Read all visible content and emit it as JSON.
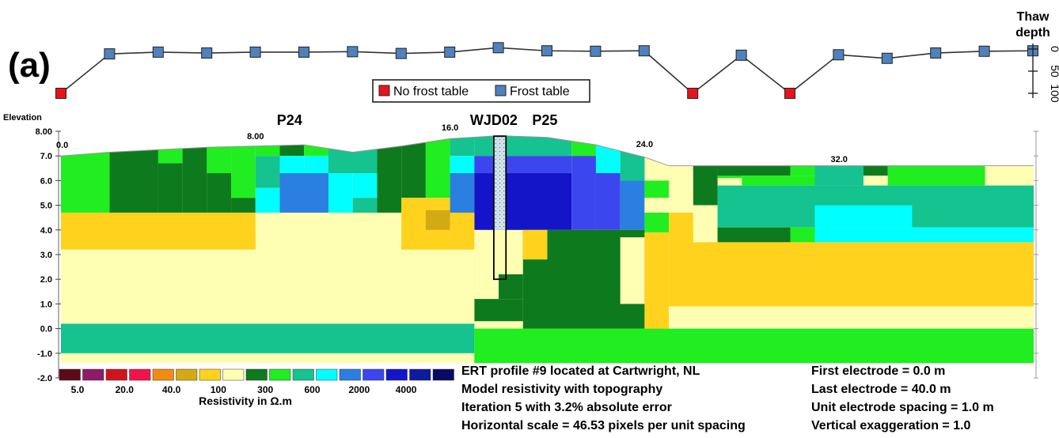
{
  "panel_label": "(a)",
  "thaw": {
    "title_line1": "Thaw",
    "title_line2": "depth",
    "tick_labels": [
      "0",
      "50",
      "100"
    ],
    "markers": [
      {
        "x": 0.0,
        "frost": false,
        "depth": 100
      },
      {
        "x": 2.0,
        "frost": true,
        "depth": 11
      },
      {
        "x": 3.0,
        "frost": true,
        "depth": 7
      },
      {
        "x": 4.0,
        "frost": true,
        "depth": 9
      },
      {
        "x": 5.0,
        "frost": true,
        "depth": 7
      },
      {
        "x": 6.0,
        "frost": true,
        "depth": 7
      },
      {
        "x": 7.0,
        "frost": true,
        "depth": 6
      },
      {
        "x": 8.0,
        "frost": true,
        "depth": 10
      },
      {
        "x": 9.0,
        "frost": true,
        "depth": 7
      },
      {
        "x": 10.0,
        "frost": true,
        "depth": -3
      },
      {
        "x": 11.0,
        "frost": true,
        "depth": 4
      },
      {
        "x": 12.0,
        "frost": true,
        "depth": 5
      },
      {
        "x": 13.0,
        "frost": true,
        "depth": 4
      },
      {
        "x": 14.0,
        "frost": false,
        "depth": 100
      },
      {
        "x": 15.0,
        "frost": true,
        "depth": 14
      },
      {
        "x": 16.0,
        "frost": false,
        "depth": 100
      },
      {
        "x": 17.0,
        "frost": true,
        "depth": 13
      },
      {
        "x": 18.0,
        "frost": true,
        "depth": 21
      },
      {
        "x": 19.0,
        "frost": true,
        "depth": 9
      },
      {
        "x": 20.0,
        "frost": true,
        "depth": 5
      },
      {
        "x": 21.0,
        "frost": true,
        "depth": 4
      }
    ]
  },
  "legend": {
    "no_frost_label": "No frost table",
    "frost_label": "Frost table",
    "no_frost_color": "#e8141c",
    "frost_color": "#4f81bd"
  },
  "chart_data": {
    "type": "heatmap",
    "title": "",
    "ylabel": "Elevation",
    "xlim": [
      0,
      40
    ],
    "ylim": [
      -2,
      8
    ],
    "x_ticks": [
      {
        "value": 0,
        "label": "0.0"
      },
      {
        "value": 8,
        "label": "8.00"
      },
      {
        "value": 16,
        "label": "16.0"
      },
      {
        "value": 24,
        "label": "24.0"
      },
      {
        "value": 32,
        "label": "32.0"
      }
    ],
    "y_ticks": [
      {
        "value": 8,
        "label": "8.00"
      },
      {
        "value": 7,
        "label": "7.0"
      },
      {
        "value": 6,
        "label": "6.0"
      },
      {
        "value": 5,
        "label": "5.0"
      },
      {
        "value": 4,
        "label": "4.0"
      },
      {
        "value": 3,
        "label": "3.0"
      },
      {
        "value": 2,
        "label": "2.0"
      },
      {
        "value": 1,
        "label": "1.0"
      },
      {
        "value": 0,
        "label": "0.0"
      },
      {
        "value": -1,
        "label": "-1.0"
      },
      {
        "value": -2,
        "label": "-2.0"
      }
    ],
    "annotations": [
      {
        "text": "P24",
        "x": 9.4
      },
      {
        "text": "WJD02",
        "x": 17.8
      },
      {
        "text": "P25",
        "x": 19.9
      }
    ],
    "borehole": {
      "x0": 17.8,
      "x1": 18.3,
      "top": 7.8,
      "bottom": 2.0,
      "ice_bottom": 4.0
    },
    "topography": [
      [
        0,
        7.0
      ],
      [
        2,
        7.15
      ],
      [
        4,
        7.25
      ],
      [
        6,
        7.35
      ],
      [
        8,
        7.4
      ],
      [
        10,
        7.45
      ],
      [
        12,
        7.15
      ],
      [
        14,
        7.4
      ],
      [
        16,
        7.7
      ],
      [
        18,
        7.82
      ],
      [
        20,
        7.75
      ],
      [
        22,
        7.45
      ],
      [
        24,
        6.95
      ],
      [
        25,
        6.6
      ],
      [
        28,
        6.6
      ],
      [
        32,
        6.6
      ],
      [
        36,
        6.6
      ],
      [
        40,
        6.6
      ]
    ],
    "colorbar": {
      "colors": [
        "#5c0a1a",
        "#8c1c6a",
        "#d0141c",
        "#f0144a",
        "#f08c14",
        "#d4aa14",
        "#ffd21e",
        "#ffffb4",
        "#0e7a1e",
        "#20ee20",
        "#14c390",
        "#00ffff",
        "#2b7fe0",
        "#3c46ee",
        "#1414c8",
        "#0e1aa0",
        "#0a0a64"
      ],
      "tick_labels": [
        "5.0",
        "20.0",
        "40.0",
        "100",
        "300",
        "600",
        "2000",
        "4000"
      ],
      "label": "Resistivity in Ω.m"
    },
    "cells": [
      {
        "x0": 0,
        "x1": 40,
        "y0": -1.4,
        "y1": 7.9,
        "c": 7
      },
      {
        "x0": 0,
        "x1": 17,
        "y0": -1.0,
        "y1": 0.2,
        "c": 10
      },
      {
        "x0": 17,
        "x1": 40,
        "y0": -1.4,
        "y1": 0.0,
        "c": 9
      },
      {
        "x0": 0,
        "x1": 2,
        "y0": 4.7,
        "y1": 8,
        "c": 9
      },
      {
        "x0": 2,
        "x1": 4,
        "y0": 4.7,
        "y1": 8,
        "c": 8
      },
      {
        "x0": 4,
        "x1": 5,
        "y0": 6.7,
        "y1": 8,
        "c": 9
      },
      {
        "x0": 4,
        "x1": 5,
        "y0": 4.7,
        "y1": 6.7,
        "c": 8
      },
      {
        "x0": 5,
        "x1": 6,
        "y0": 4.7,
        "y1": 8,
        "c": 8
      },
      {
        "x0": 6,
        "x1": 7,
        "y0": 6.3,
        "y1": 8,
        "c": 9
      },
      {
        "x0": 6,
        "x1": 7,
        "y0": 4.7,
        "y1": 6.3,
        "c": 8
      },
      {
        "x0": 7,
        "x1": 8,
        "y0": 5.3,
        "y1": 8,
        "c": 9
      },
      {
        "x0": 7,
        "x1": 8,
        "y0": 4.7,
        "y1": 5.3,
        "c": 8
      },
      {
        "x0": 8,
        "x1": 9,
        "y0": 7.0,
        "y1": 8,
        "c": 9
      },
      {
        "x0": 8,
        "x1": 9,
        "y0": 5.7,
        "y1": 7.0,
        "c": 10
      },
      {
        "x0": 8,
        "x1": 9,
        "y0": 4.7,
        "y1": 5.7,
        "c": 11
      },
      {
        "x0": 9,
        "x1": 10,
        "y0": 7.0,
        "y1": 8,
        "c": 8
      },
      {
        "x0": 9,
        "x1": 10,
        "y0": 6.3,
        "y1": 7.0,
        "c": 11
      },
      {
        "x0": 9,
        "x1": 11,
        "y0": 4.7,
        "y1": 6.3,
        "c": 12
      },
      {
        "x0": 10,
        "x1": 11,
        "y0": 7.0,
        "y1": 8,
        "c": 9
      },
      {
        "x0": 10,
        "x1": 11,
        "y0": 6.3,
        "y1": 7.0,
        "c": 11
      },
      {
        "x0": 11,
        "x1": 13,
        "y0": 6.3,
        "y1": 8,
        "c": 10
      },
      {
        "x0": 11,
        "x1": 12,
        "y0": 4.7,
        "y1": 6.3,
        "c": 11
      },
      {
        "x0": 12,
        "x1": 13,
        "y0": 5.3,
        "y1": 6.3,
        "c": 11
      },
      {
        "x0": 12,
        "x1": 13,
        "y0": 4.7,
        "y1": 5.3,
        "c": 10
      },
      {
        "x0": 13,
        "x1": 14,
        "y0": 4.7,
        "y1": 8,
        "c": 8
      },
      {
        "x0": 14,
        "x1": 15,
        "y0": 5.3,
        "y1": 8,
        "c": 8
      },
      {
        "x0": 15,
        "x1": 16,
        "y0": 5.3,
        "y1": 8,
        "c": 9
      },
      {
        "x0": 16,
        "x1": 17,
        "y0": 7.0,
        "y1": 8,
        "c": 10
      },
      {
        "x0": 16,
        "x1": 17,
        "y0": 6.3,
        "y1": 7.0,
        "c": 11
      },
      {
        "x0": 16,
        "x1": 17,
        "y0": 4.7,
        "y1": 6.3,
        "c": 12
      },
      {
        "x0": 17,
        "x1": 21,
        "y0": 7.0,
        "y1": 8,
        "c": 10
      },
      {
        "x0": 17,
        "x1": 18,
        "y0": 6.3,
        "y1": 7.0,
        "c": 13
      },
      {
        "x0": 17,
        "x1": 18,
        "y0": 4.0,
        "y1": 6.3,
        "c": 14
      },
      {
        "x0": 18,
        "x1": 21,
        "y0": 6.3,
        "y1": 7.0,
        "c": 13
      },
      {
        "x0": 18,
        "x1": 21,
        "y0": 4.0,
        "y1": 6.3,
        "c": 14
      },
      {
        "x0": 21,
        "x1": 22,
        "y0": 7.0,
        "y1": 8,
        "c": 9
      },
      {
        "x0": 21,
        "x1": 22,
        "y0": 4.0,
        "y1": 7.0,
        "c": 13
      },
      {
        "x0": 22,
        "x1": 23,
        "y0": 6.3,
        "y1": 8,
        "c": 11
      },
      {
        "x0": 22,
        "x1": 23,
        "y0": 4.0,
        "y1": 6.3,
        "c": 13
      },
      {
        "x0": 23,
        "x1": 24,
        "y0": 6.0,
        "y1": 8,
        "c": 10
      },
      {
        "x0": 23,
        "x1": 24,
        "y0": 4.0,
        "y1": 6.0,
        "c": 12
      },
      {
        "x0": 24,
        "x1": 25,
        "y0": 5.3,
        "y1": 6.0,
        "c": 9
      },
      {
        "x0": 24,
        "x1": 25,
        "y0": 4.7,
        "y1": 5.3,
        "c": 7
      },
      {
        "x0": 24,
        "x1": 25,
        "y0": 3.9,
        "y1": 4.7,
        "c": 9
      },
      {
        "x0": 14,
        "x1": 16,
        "y0": 3.0,
        "y1": 5.3,
        "c": 6
      },
      {
        "x0": 15,
        "x1": 16,
        "y0": 4.0,
        "y1": 4.8,
        "c": 5
      },
      {
        "x0": 16,
        "x1": 17,
        "y0": 3.0,
        "y1": 4.7,
        "c": 6
      },
      {
        "x0": 16,
        "x1": 17,
        "y0": 1.2,
        "y1": 3.0,
        "c": 6
      },
      {
        "x0": 17,
        "x1": 19,
        "y0": 0.3,
        "y1": 1.2,
        "c": 8
      },
      {
        "x0": 19,
        "x1": 24,
        "y0": 0.0,
        "y1": 4.0,
        "c": 8
      },
      {
        "x0": 18,
        "x1": 19,
        "y0": 1.2,
        "y1": 2.2,
        "c": 8
      },
      {
        "x0": 19,
        "x1": 20,
        "y0": 2.8,
        "y1": 4.0,
        "c": 6
      },
      {
        "x0": 23,
        "x1": 24,
        "y0": 1.0,
        "y1": 3.7,
        "c": 7
      },
      {
        "x0": 24,
        "x1": 25,
        "y0": 0.0,
        "y1": 3.9,
        "c": 6
      },
      {
        "x0": 25,
        "x1": 26,
        "y0": 4.7,
        "y1": 6.6,
        "c": 7
      },
      {
        "x0": 25,
        "x1": 26,
        "y0": 3.5,
        "y1": 4.7,
        "c": 6
      },
      {
        "x0": 26,
        "x1": 27,
        "y0": 5.0,
        "y1": 6.6,
        "c": 8
      },
      {
        "x0": 26,
        "x1": 27,
        "y0": 4.2,
        "y1": 5.0,
        "c": 7
      },
      {
        "x0": 27,
        "x1": 30,
        "y0": 6.6,
        "y1": 6.6,
        "c": 8
      },
      {
        "x0": 27,
        "x1": 28,
        "y0": 6.1,
        "y1": 6.6,
        "c": 9
      },
      {
        "x0": 27,
        "x1": 40,
        "y0": 4.1,
        "y1": 5.8,
        "c": 10
      },
      {
        "x0": 27,
        "x1": 30,
        "y0": 6.2,
        "y1": 6.6,
        "c": 8
      },
      {
        "x0": 28,
        "x1": 31,
        "y0": 5.8,
        "y1": 6.2,
        "c": 9
      },
      {
        "x0": 30,
        "x1": 31,
        "y0": 6.2,
        "y1": 6.6,
        "c": 9
      },
      {
        "x0": 31,
        "x1": 33,
        "y0": 5.8,
        "y1": 6.6,
        "c": 10
      },
      {
        "x0": 33,
        "x1": 34,
        "y0": 6.2,
        "y1": 6.6,
        "c": 8
      },
      {
        "x0": 34,
        "x1": 38,
        "y0": 5.8,
        "y1": 6.6,
        "c": 9
      },
      {
        "x0": 31,
        "x1": 35,
        "y0": 4.1,
        "y1": 5.0,
        "c": 11
      },
      {
        "x0": 27,
        "x1": 30,
        "y0": 3.5,
        "y1": 4.1,
        "c": 8
      },
      {
        "x0": 30,
        "x1": 31,
        "y0": 3.5,
        "y1": 4.1,
        "c": 9
      },
      {
        "x0": 31,
        "x1": 40,
        "y0": 3.5,
        "y1": 4.1,
        "c": 11
      },
      {
        "x0": 25,
        "x1": 40,
        "y0": 0.9,
        "y1": 3.5,
        "c": 6
      },
      {
        "x0": 25,
        "x1": 40,
        "y0": 0.0,
        "y1": 0.9,
        "c": 7
      },
      {
        "x0": 0,
        "x1": 8,
        "y0": 3.2,
        "y1": 4.7,
        "c": 6
      },
      {
        "x0": 0,
        "x1": 17,
        "y0": 0.2,
        "y1": 3.2,
        "c": 7
      }
    ]
  },
  "info_left": [
    "ERT profile #9 located at Cartwright, NL",
    "Model resistivity with topography",
    "Iteration 5 with 3.2% absolute error",
    "Horizontal scale = 46.53 pixels per unit spacing"
  ],
  "info_right": [
    "First electrode = 0.0 m",
    "Last electrode = 40.0 m",
    "Unit electrode spacing = 1.0 m",
    "Vertical exaggeration = 1.0"
  ]
}
